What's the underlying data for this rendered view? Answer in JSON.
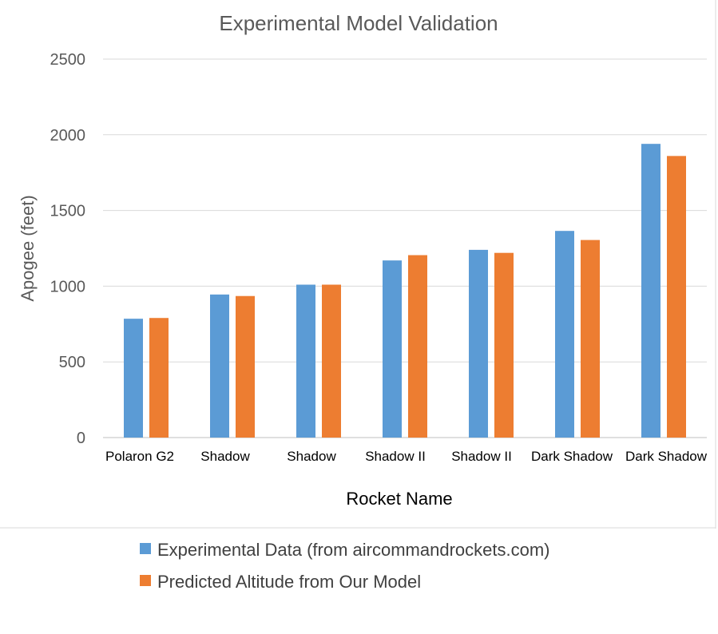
{
  "chart_data": {
    "type": "bar",
    "title": "Experimental Model Validation",
    "xlabel": "Rocket Name",
    "ylabel": "Apogee (feet)",
    "ylim": [
      0,
      2500
    ],
    "yticks": [
      0,
      500,
      1000,
      1500,
      2000,
      2500
    ],
    "grid": true,
    "legend_position": "bottom",
    "categories": [
      "Polaron G2",
      "Shadow",
      "Shadow",
      "Shadow II",
      "Shadow II",
      "Dark Shadow",
      "Dark Shadow"
    ],
    "series": [
      {
        "name": "Experimental Data (from aircommandrockets.com)",
        "color": "#5b9bd5",
        "values": [
          785,
          945,
          1010,
          1170,
          1240,
          1365,
          1940
        ]
      },
      {
        "name": "Predicted Altitude from Our Model",
        "color": "#ed7d31",
        "values": [
          790,
          935,
          1010,
          1205,
          1220,
          1305,
          1860
        ]
      }
    ]
  }
}
